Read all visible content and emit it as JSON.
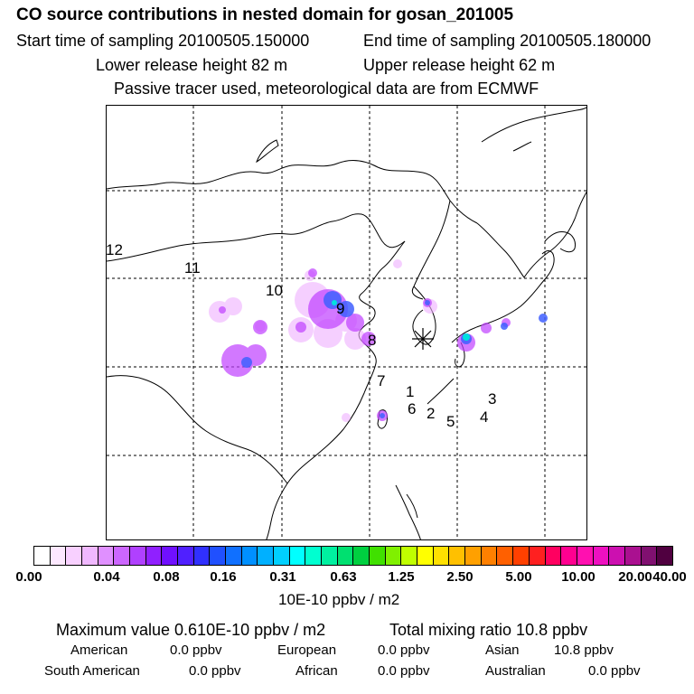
{
  "header": {
    "title": "CO  source contributions in nested domain for gosan_201005",
    "start_time": "Start time of sampling 20100505.150000",
    "end_time": "End time of sampling 20100505.180000",
    "lower_height": "Lower release height   82 m",
    "upper_height": "Upper release height   62 m",
    "tracer_note": "Passive tracer used, meteorological data are from ECMWF"
  },
  "map": {
    "region_labels": [
      "12",
      "11",
      "10",
      "9",
      "8",
      "7",
      "1",
      "6",
      "2",
      "5",
      "4",
      "3"
    ],
    "receptor_marker": "receptor-star",
    "colors": {
      "land": "#000000",
      "grid": "#000000",
      "plume_low": "#f0b0ff",
      "plume_mid": "#b040ff",
      "plume_high": "#4060ff",
      "plume_peak": "#00e0e0"
    }
  },
  "colorbar": {
    "tick_labels": [
      "0.00",
      "0.04",
      "0.08",
      "0.16",
      "0.31",
      "0.63",
      "1.25",
      "2.50",
      "5.00",
      "10.00",
      "20.00",
      "40.00"
    ],
    "colors": [
      "#ffffff",
      "#fde8ff",
      "#f8d0ff",
      "#f0b8ff",
      "#e090ff",
      "#cc66ff",
      "#b040ff",
      "#9020ff",
      "#7010ff",
      "#5020ff",
      "#3030ff",
      "#2050ff",
      "#1070ff",
      "#0090ff",
      "#00b0ff",
      "#00d0ff",
      "#00ffff",
      "#00ffd0",
      "#00f0a0",
      "#00e070",
      "#00d040",
      "#40e000",
      "#80f000",
      "#c0ff00",
      "#ffff00",
      "#ffe000",
      "#ffc000",
      "#ffa000",
      "#ff8000",
      "#ff6000",
      "#ff4000",
      "#ff2020",
      "#ff0060",
      "#ff0090",
      "#ff10b0",
      "#ee10c0",
      "#cc10b0",
      "#aa1090",
      "#801070",
      "#500040"
    ],
    "units": "10E-10 ppbv / m2"
  },
  "stats": {
    "maximum": "Maximum value  0.610E-10 ppbv / m2",
    "total": "Total mixing ratio       10.8 ppbv",
    "american_label": "American",
    "american_value": "0.0 ppbv",
    "european_label": "European",
    "european_value": "0.0 ppbv",
    "asian_label": "Asian",
    "asian_value": "10.8 ppbv",
    "south_american_label": "South American",
    "south_american_value": "0.0 ppbv",
    "african_label": "African",
    "african_value": "0.0 ppbv",
    "australian_label": "Australian",
    "australian_value": "0.0 ppbv"
  }
}
